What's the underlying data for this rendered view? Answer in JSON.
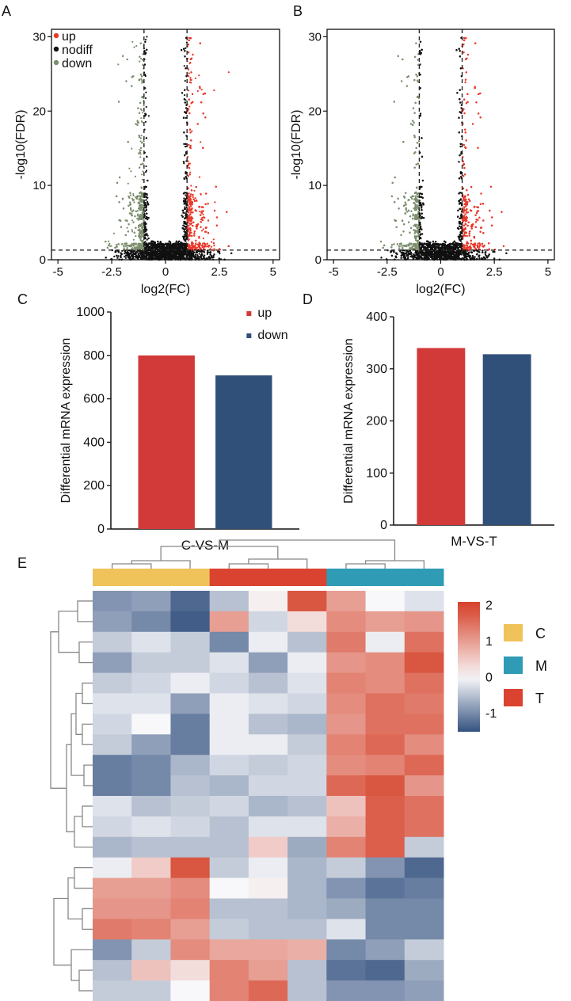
{
  "panel_labels": {
    "a": "A",
    "b": "B",
    "c": "C",
    "d": "D",
    "e": "E"
  },
  "chart_data": [
    {
      "type": "scatter",
      "panel": "A",
      "title": "",
      "xlabel": "log2(FC)",
      "ylabel": "-log10(FDR)",
      "xlim": [
        -5.3,
        5.3
      ],
      "ylim": [
        0,
        31
      ],
      "xticks": [
        "-5",
        "-2.5",
        "0",
        "2.5",
        "5"
      ],
      "yticks": [
        "0",
        "10",
        "20",
        "30"
      ],
      "fc_threshold": [
        -1,
        1
      ],
      "fdr_threshold": 1.3,
      "legend": [
        {
          "label": "up",
          "color": "#e8392b"
        },
        {
          "label": "nodiff",
          "color": "#111111"
        },
        {
          "label": "down",
          "color": "#7d8f6e"
        }
      ]
    },
    {
      "type": "scatter",
      "panel": "B",
      "title": "",
      "xlabel": "log2(FC)",
      "ylabel": "-log10(FDR)",
      "xlim": [
        -5.3,
        5.3
      ],
      "ylim": [
        0,
        31
      ],
      "xticks": [
        "-5",
        "-2.5",
        "0",
        "2.5",
        "5"
      ],
      "yticks": [
        "0",
        "10",
        "20",
        "30"
      ],
      "fc_threshold": [
        -1,
        1
      ],
      "fdr_threshold": 1.3
    },
    {
      "type": "bar",
      "panel": "C",
      "categories": [
        "up",
        "down"
      ],
      "values": [
        800,
        708
      ],
      "colors": [
        "#d13a38",
        "#30507a"
      ],
      "xlabel": "C-VS-M",
      "ylabel": "Differential mRNA expression",
      "ylim": [
        0,
        1000
      ],
      "yticks": [
        "0",
        "200",
        "400",
        "600",
        "800",
        "1000"
      ],
      "legend": [
        "up",
        "down"
      ]
    },
    {
      "type": "bar",
      "panel": "D",
      "categories": [
        "up",
        "down"
      ],
      "values": [
        340,
        328
      ],
      "colors": [
        "#d13a38",
        "#30507a"
      ],
      "xlabel": "M-VS-T",
      "ylabel": "Differential mRNA expression",
      "ylim": [
        0,
        400
      ],
      "yticks": [
        "0",
        "100",
        "200",
        "300",
        "400"
      ]
    },
    {
      "type": "heatmap",
      "panel": "E",
      "groups": [
        "C",
        "C",
        "C",
        "T",
        "T",
        "T",
        "M",
        "M",
        "M"
      ],
      "group_colors": {
        "C": "#f0c35a",
        "M": "#2f9bb4",
        "T": "#d9432f"
      },
      "group_legend": [
        "C",
        "M",
        "T"
      ],
      "colorbar_ticks": [
        "2",
        "1",
        "0",
        "-1"
      ],
      "colorbar_range": [
        -1.5,
        2.1
      ],
      "values": [
        [
          -0.9,
          -0.8,
          -1.3,
          -0.5,
          0.1,
          1.8,
          1.0,
          0.0,
          -0.2
        ],
        [
          -0.8,
          -1.0,
          -1.4,
          1.0,
          -0.3,
          0.3,
          1.2,
          1.0,
          1.1
        ],
        [
          -0.4,
          -0.2,
          -0.4,
          -1.0,
          -0.1,
          -0.5,
          1.4,
          -0.1,
          1.5
        ],
        [
          -0.8,
          -0.4,
          -0.4,
          -0.2,
          -0.8,
          -0.1,
          1.1,
          1.2,
          1.8
        ],
        [
          -0.4,
          -0.3,
          -0.1,
          -0.3,
          -0.5,
          -0.2,
          1.3,
          1.2,
          1.5
        ],
        [
          -0.2,
          -0.2,
          -0.8,
          -0.1,
          -0.2,
          -0.3,
          1.2,
          1.5,
          1.4
        ],
        [
          -0.3,
          0.0,
          -1.1,
          -0.1,
          -0.5,
          -0.6,
          1.1,
          1.5,
          1.5
        ],
        [
          -0.4,
          -0.8,
          -1.1,
          -0.1,
          -0.1,
          -0.4,
          1.3,
          1.6,
          1.2
        ],
        [
          -1.1,
          -1.0,
          -0.6,
          -0.3,
          -0.4,
          -0.3,
          1.2,
          1.3,
          1.6
        ],
        [
          -1.1,
          -1.0,
          -0.5,
          -0.6,
          -0.3,
          -0.3,
          1.6,
          1.8,
          1.1
        ],
        [
          -0.2,
          -0.5,
          -0.4,
          -0.3,
          -0.6,
          -0.5,
          0.6,
          1.7,
          1.5
        ],
        [
          -0.3,
          -0.2,
          -0.3,
          -0.5,
          -0.2,
          -0.2,
          0.8,
          1.7,
          1.5
        ],
        [
          -0.6,
          -0.5,
          -0.5,
          -0.5,
          0.5,
          -0.7,
          1.3,
          1.7,
          -0.4
        ],
        [
          -0.1,
          0.5,
          1.8,
          -0.4,
          -0.1,
          -0.6,
          -0.4,
          -0.9,
          -1.3
        ],
        [
          1.0,
          1.0,
          1.2,
          0.0,
          0.1,
          -0.6,
          -0.9,
          -1.2,
          -1.1
        ],
        [
          1.1,
          1.1,
          1.3,
          -0.5,
          -0.5,
          -0.6,
          -0.7,
          -1.0,
          -1.0
        ],
        [
          1.4,
          1.3,
          1.0,
          -0.4,
          -0.5,
          -0.5,
          -0.2,
          -1.0,
          -1.0
        ],
        [
          -0.9,
          -0.4,
          1.2,
          0.9,
          0.9,
          0.8,
          -1.0,
          -0.8,
          -0.4
        ],
        [
          -0.5,
          0.6,
          0.3,
          1.3,
          1.0,
          -0.5,
          -1.2,
          -1.3,
          -0.7
        ],
        [
          -0.4,
          -0.4,
          0.0,
          1.3,
          1.6,
          -0.5,
          -0.9,
          -0.9,
          -0.8
        ]
      ]
    }
  ]
}
